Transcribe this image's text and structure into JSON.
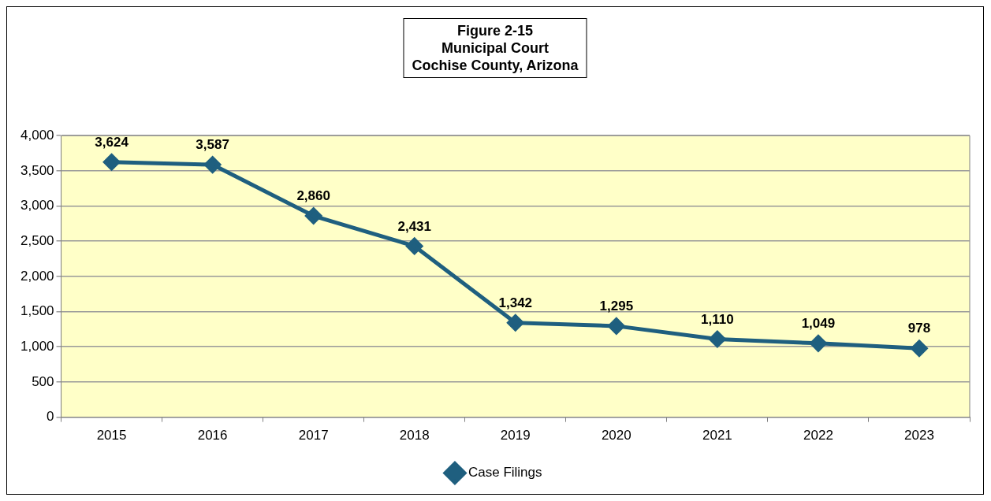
{
  "chart_data": {
    "type": "line",
    "title": "Figure 2-15\nMunicipal Court\nCochise County, Arizona",
    "categories": [
      "2015",
      "2016",
      "2017",
      "2018",
      "2019",
      "2020",
      "2021",
      "2022",
      "2023"
    ],
    "series": [
      {
        "name": "Case Filings",
        "color": "#1f5f7f",
        "values": [
          3624,
          3587,
          2860,
          2431,
          1342,
          1295,
          1110,
          1049,
          978
        ],
        "value_labels": [
          "3,624",
          "3,587",
          "2,860",
          "2,431",
          "1,342",
          "1,295",
          "1,110",
          "1,049",
          "978"
        ]
      }
    ],
    "ylim": [
      0,
      4000
    ],
    "yticks": [
      {
        "value": 0,
        "label": "0"
      },
      {
        "value": 500,
        "label": "500"
      },
      {
        "value": 1000,
        "label": "1,000"
      },
      {
        "value": 1500,
        "label": "1,500"
      },
      {
        "value": 2000,
        "label": "2,000"
      },
      {
        "value": 2500,
        "label": "2,500"
      },
      {
        "value": 3000,
        "label": "3,000"
      },
      {
        "value": 3500,
        "label": "3,500"
      },
      {
        "value": 4000,
        "label": "4,000"
      }
    ],
    "grid": "y",
    "legend": "bottom",
    "marker": "diamond",
    "line_style": "solid"
  }
}
